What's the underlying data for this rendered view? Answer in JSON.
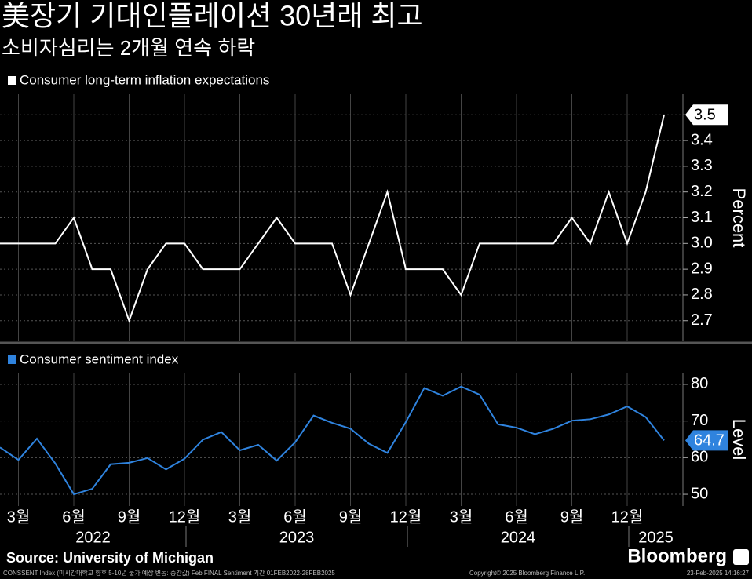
{
  "header": {
    "title": "美장기 기대인플레이션 30년래 최고",
    "subtitle": "소비자심리는 2개월 연속 하락"
  },
  "chart_data": [
    {
      "type": "line",
      "ylabel": "Percent",
      "grid": true,
      "series": [
        {
          "name": "Consumer long-term inflation expectations",
          "color": "#ffffff",
          "values": [
            3.0,
            3.0,
            3.0,
            3.0,
            3.1,
            2.9,
            2.9,
            2.7,
            2.9,
            3.0,
            3.0,
            2.9,
            2.9,
            2.9,
            3.0,
            3.1,
            3.0,
            3.0,
            3.0,
            2.8,
            3.0,
            3.2,
            2.9,
            2.9,
            2.9,
            2.8,
            3.0,
            3.0,
            3.0,
            3.0,
            3.0,
            3.1,
            3.0,
            3.2,
            3.0,
            3.2,
            3.5
          ]
        }
      ],
      "ylim": [
        2.62,
        3.58
      ],
      "yticks": [
        2.7,
        2.8,
        2.9,
        {
          "value": 3,
          "label": "3.0"
        },
        3.1,
        3.2,
        3.3,
        3.4,
        3.5
      ]
    },
    {
      "type": "line",
      "ylabel": "Level",
      "grid": true,
      "categories": [
        null,
        "3월",
        null,
        null,
        "6월",
        null,
        null,
        "9월",
        null,
        null,
        "12월",
        null,
        null,
        "3월",
        null,
        null,
        "6월",
        null,
        null,
        "9월",
        null,
        null,
        "12월",
        null,
        null,
        "3월",
        null,
        null,
        "6월",
        null,
        null,
        "9월",
        null,
        null,
        "12월",
        null,
        null
      ],
      "years": [
        "2022",
        "2023",
        "2024",
        "2025"
      ],
      "series": [
        {
          "name": "Consumer sentiment index",
          "color": "#2f83de",
          "values": [
            62.8,
            59.4,
            65.2,
            58.4,
            50.0,
            51.5,
            58.2,
            58.6,
            59.9,
            56.8,
            59.7,
            64.9,
            67.0,
            62.0,
            63.5,
            59.2,
            64.2,
            71.5,
            69.5,
            67.9,
            63.8,
            61.3,
            69.7,
            79.0,
            76.9,
            79.4,
            77.2,
            69.1,
            68.2,
            66.4,
            67.9,
            70.1,
            70.5,
            71.8,
            74.0,
            71.1,
            64.7
          ]
        }
      ],
      "ylim": [
        46.8,
        83.2
      ],
      "yticks": [
        50,
        60,
        70,
        80
      ]
    }
  ],
  "footer": {
    "source": "Source: University of Michigan",
    "brand": "Bloomberg",
    "note": "CONSSENT Index (미시간대학교 향후 5-10년 물가 예상 변동: 중간값) Feb FINAL Sentiment 기간 01FEB2022-28FEB2025",
    "copyright": "Copyright© 2025 Bloomberg Finance L.P.",
    "timestamp": "23-Feb-2025 14:16:27"
  }
}
